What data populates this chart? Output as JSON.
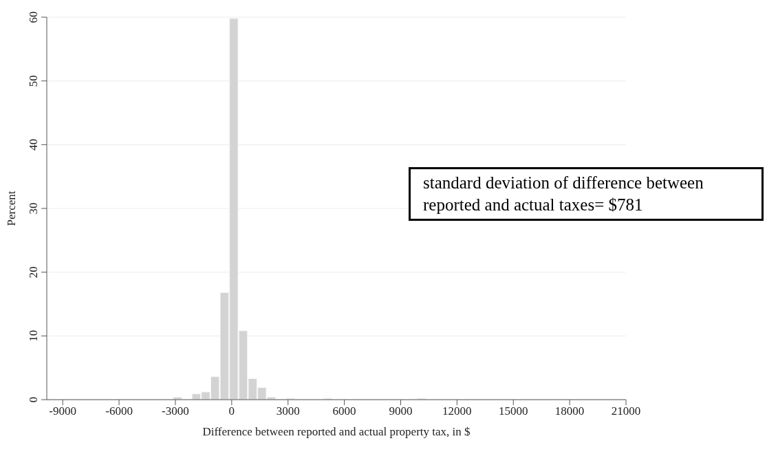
{
  "chart_data": {
    "type": "histogram",
    "xlabel": "Difference between reported and actual property tax, in $",
    "ylabel": "Percent",
    "bins": [
      -3150,
      -2650,
      -2150,
      -1650,
      -1150,
      -650,
      -150,
      350,
      850,
      1350,
      1850,
      2350,
      2850,
      3350,
      3850,
      4350,
      4850,
      5350,
      5850,
      6350,
      6850,
      7350,
      7850,
      8350,
      8850,
      9350,
      9850,
      10350
    ],
    "values": [
      0.4,
      0,
      0.9,
      1.2,
      3.6,
      16.8,
      59.8,
      10.8,
      3.3,
      1.9,
      0.4,
      0,
      0.2,
      0,
      0,
      0,
      0.2,
      0,
      0,
      0,
      0,
      0,
      0,
      0,
      0,
      0,
      0.2
    ],
    "color": "#d3d3d3",
    "xlim": [
      -9850,
      21000
    ],
    "xticks": [
      -9000,
      -6000,
      -3000,
      0,
      3000,
      6000,
      9000,
      12000,
      15000,
      18000,
      21000
    ],
    "ylim": [
      0,
      60
    ],
    "yticks": [
      0,
      10,
      20,
      30,
      40,
      50,
      60
    ],
    "grid": "y",
    "annotations": [
      "standard deviation of difference between reported and actual taxes= $781"
    ]
  }
}
